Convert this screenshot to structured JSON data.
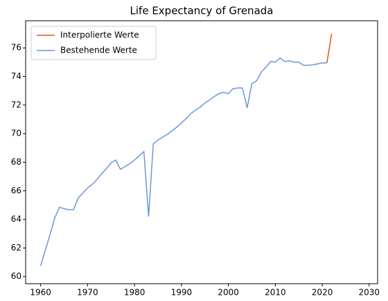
{
  "chart_data": {
    "type": "line",
    "title": "Life Expectancy of Grenada",
    "x": [
      1960,
      1961,
      1962,
      1963,
      1964,
      1965,
      1966,
      1967,
      1968,
      1969,
      1970,
      1971,
      1972,
      1973,
      1974,
      1975,
      1976,
      1977,
      1978,
      1979,
      1980,
      1981,
      1982,
      1983,
      1984,
      1985,
      1986,
      1987,
      1988,
      1989,
      1990,
      1991,
      1992,
      1993,
      1994,
      1995,
      1996,
      1997,
      1998,
      1999,
      2000,
      2001,
      2002,
      2003,
      2004,
      2005,
      2006,
      2007,
      2008,
      2009,
      2010,
      2011,
      2012,
      2013,
      2014,
      2015,
      2016,
      2017,
      2018,
      2019,
      2020,
      2021,
      2022
    ],
    "series": [
      {
        "name": "Interpolierte Werte",
        "color": "#e8541c",
        "values": [
          null,
          null,
          null,
          null,
          null,
          null,
          null,
          null,
          null,
          null,
          null,
          null,
          null,
          null,
          null,
          null,
          null,
          null,
          null,
          null,
          null,
          null,
          null,
          null,
          null,
          null,
          null,
          null,
          null,
          null,
          null,
          null,
          null,
          null,
          null,
          null,
          null,
          null,
          null,
          null,
          null,
          null,
          null,
          null,
          null,
          null,
          null,
          null,
          null,
          null,
          null,
          null,
          null,
          null,
          null,
          null,
          null,
          null,
          null,
          null,
          null,
          74.95,
          77.0
        ]
      },
      {
        "name": "Bestehende Werte",
        "color": "#6c96d8",
        "values": [
          60.75,
          61.85,
          62.95,
          64.1,
          64.85,
          64.75,
          64.68,
          64.68,
          65.5,
          65.85,
          66.2,
          66.45,
          66.8,
          67.2,
          67.55,
          67.95,
          68.15,
          67.5,
          67.7,
          67.9,
          68.15,
          68.45,
          68.75,
          64.2,
          69.3,
          69.55,
          69.75,
          69.95,
          70.2,
          70.45,
          70.75,
          71.05,
          71.4,
          71.65,
          71.85,
          72.15,
          72.35,
          72.6,
          72.8,
          72.9,
          72.8,
          73.15,
          73.2,
          73.2,
          71.8,
          73.5,
          73.7,
          74.3,
          74.65,
          75.05,
          75.0,
          75.3,
          75.05,
          75.1,
          75.0,
          75.0,
          74.78,
          74.78,
          74.82,
          74.88,
          74.95,
          74.95,
          null
        ]
      }
    ],
    "xlim": [
      1956.8,
      2031.8
    ],
    "xticks": [
      1960,
      1970,
      1980,
      1990,
      2000,
      2010,
      2020,
      2030
    ],
    "ylim": [
      59.5,
      77.9
    ],
    "yticks": [
      60,
      62,
      64,
      66,
      68,
      70,
      72,
      74,
      76
    ],
    "legend": "upper left"
  }
}
